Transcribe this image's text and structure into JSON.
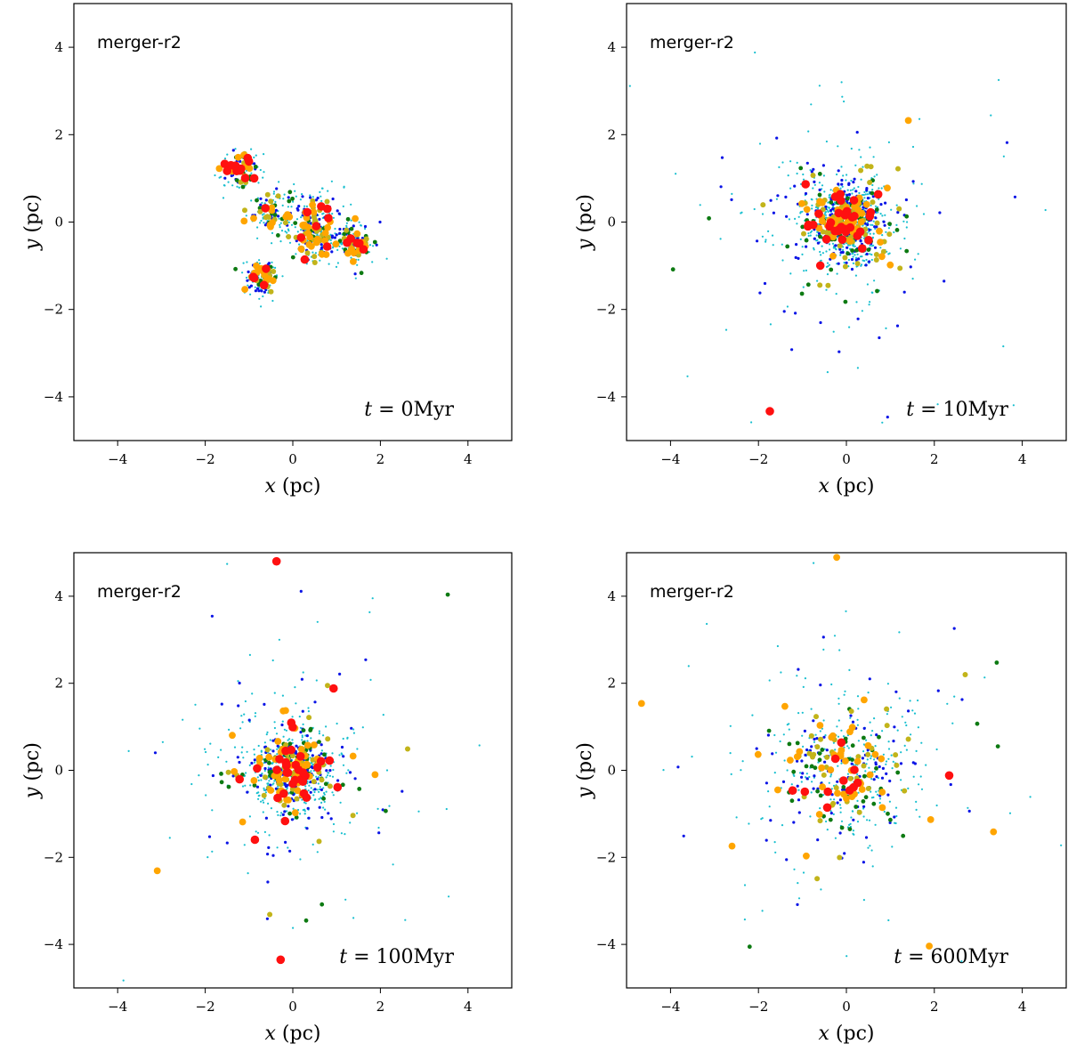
{
  "chart_data": [
    {
      "type": "scatter",
      "run_label": "merger-r2",
      "time_label": {
        "var": "t",
        "eq": " = ",
        "value": "0Myr"
      },
      "xlabel": {
        "var": "x",
        "unit": " (pc)"
      },
      "ylabel": {
        "var": "y",
        "unit": " (pc)"
      },
      "xlim": [
        -5,
        5
      ],
      "ylim": [
        -5,
        5
      ],
      "ticks": [
        -4,
        -2,
        0,
        2,
        4
      ],
      "tick_labels": [
        "−4",
        "−2",
        "0",
        "2",
        "4"
      ],
      "distribution": "clumps",
      "clumps": [
        [
          -1.2,
          1.2,
          0.22
        ],
        [
          -0.45,
          0.15,
          0.28
        ],
        [
          0.55,
          0.2,
          0.33
        ],
        [
          0.5,
          -0.4,
          0.28
        ],
        [
          1.4,
          -0.5,
          0.25
        ],
        [
          -0.75,
          -1.3,
          0.2
        ]
      ],
      "mass_counts": {
        "cyan": 420,
        "blue": 160,
        "green": 60,
        "olive": 70,
        "orange": 70,
        "red": 30
      },
      "seed": 7
    },
    {
      "type": "scatter",
      "run_label": "merger-r2",
      "time_label": {
        "var": "t",
        "eq": " = ",
        "value": "10Myr"
      },
      "xlabel": {
        "var": "x",
        "unit": " (pc)"
      },
      "ylabel": {
        "var": "y",
        "unit": " (pc)"
      },
      "xlim": [
        -5,
        5
      ],
      "ylim": [
        -5,
        5
      ],
      "ticks": [
        -4,
        -2,
        0,
        2,
        4
      ],
      "tick_labels": [
        "−4",
        "−2",
        "0",
        "2",
        "4"
      ],
      "distribution": "halo",
      "core_scale": 0.45,
      "mass_counts": {
        "cyan": 700,
        "blue": 260,
        "green": 80,
        "olive": 70,
        "orange": 55,
        "red": 35
      },
      "seed": 21
    },
    {
      "type": "scatter",
      "run_label": "merger-r2",
      "time_label": {
        "var": "t",
        "eq": " = ",
        "value": "100Myr"
      },
      "xlabel": {
        "var": "x",
        "unit": " (pc)"
      },
      "ylabel": {
        "var": "y",
        "unit": " (pc)"
      },
      "xlim": [
        -5,
        5
      ],
      "ylim": [
        -5,
        5
      ],
      "ticks": [
        -4,
        -2,
        0,
        2,
        4
      ],
      "tick_labels": [
        "−4",
        "−2",
        "0",
        "2",
        "4"
      ],
      "distribution": "halo",
      "core_scale": 0.55,
      "mass_counts": {
        "cyan": 500,
        "blue": 170,
        "green": 60,
        "olive": 55,
        "orange": 50,
        "red": 35
      },
      "seed": 42
    },
    {
      "type": "scatter",
      "run_label": "merger-r2",
      "time_label": {
        "var": "t",
        "eq": " = ",
        "value": "600Myr"
      },
      "xlabel": {
        "var": "x",
        "unit": " (pc)"
      },
      "ylabel": {
        "var": "y",
        "unit": " (pc)"
      },
      "xlim": [
        -5,
        5
      ],
      "ylim": [
        -5,
        5
      ],
      "ticks": [
        -4,
        -2,
        0,
        2,
        4
      ],
      "tick_labels": [
        "−4",
        "−2",
        "0",
        "2",
        "4"
      ],
      "distribution": "halo",
      "core_scale": 0.9,
      "mass_counts": {
        "cyan": 300,
        "blue": 110,
        "green": 50,
        "olive": 40,
        "orange": 45,
        "red": 12
      },
      "seed": 99
    }
  ],
  "colors": {
    "cyan": "#17bfcf",
    "blue": "#0a14e6",
    "green": "#0d7a12",
    "olive": "#c2b41a",
    "orange": "#ffa500",
    "red": "#ff1010",
    "axes": "#000000"
  }
}
